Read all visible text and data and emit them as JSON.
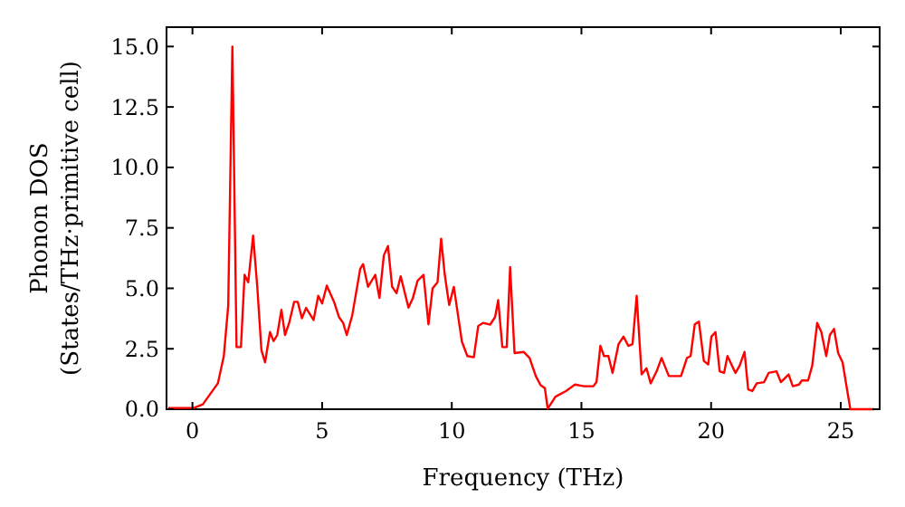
{
  "chart_data": {
    "type": "line",
    "xlabel": "Frequency (THz)",
    "ylabel": "Phonon DOS\n(States/THz·primitive cell)",
    "xlim": [
      -1,
      26.5
    ],
    "ylim": [
      0,
      15.8
    ],
    "xticks": [
      0,
      5,
      10,
      15,
      20,
      25
    ],
    "yticks": [
      {
        "value": 0,
        "label": "0.0"
      },
      2.5,
      {
        "value": 5,
        "label": "5.0"
      },
      7.5,
      {
        "value": 10,
        "label": "10.0"
      },
      12.5,
      {
        "value": 15,
        "label": "15.0"
      }
    ],
    "grid": false,
    "marker": "none",
    "line_style": "solid",
    "series": [
      {
        "color": "#ff0000",
        "x": [
          -0.93,
          0.05,
          0.4,
          0.98,
          1.21,
          1.38,
          1.54,
          1.7,
          1.87,
          2.01,
          2.15,
          2.34,
          2.5,
          2.66,
          2.8,
          2.99,
          3.13,
          3.27,
          3.43,
          3.57,
          3.73,
          3.92,
          4.06,
          4.22,
          4.38,
          4.67,
          4.85,
          5.0,
          5.18,
          5.46,
          5.65,
          5.81,
          5.95,
          6.16,
          6.47,
          6.58,
          6.77,
          7.05,
          7.21,
          7.38,
          7.54,
          7.7,
          7.87,
          8.03,
          8.33,
          8.5,
          8.68,
          8.91,
          9.1,
          9.26,
          9.45,
          9.59,
          9.73,
          9.9,
          10.08,
          10.39,
          10.6,
          10.85,
          11.02,
          11.2,
          11.48,
          11.67,
          11.79,
          11.95,
          12.12,
          12.25,
          12.42,
          12.77,
          13.0,
          13.24,
          13.42,
          13.59,
          13.7,
          14.0,
          14.4,
          14.75,
          15.1,
          15.46,
          15.58,
          15.73,
          15.87,
          16.04,
          16.2,
          16.43,
          16.62,
          16.81,
          16.97,
          17.13,
          17.32,
          17.51,
          17.67,
          17.9,
          18.09,
          18.37,
          18.84,
          19.07,
          19.21,
          19.37,
          19.53,
          19.72,
          19.89,
          20.01,
          20.17,
          20.33,
          20.5,
          20.63,
          20.94,
          21.1,
          21.29,
          21.43,
          21.59,
          21.76,
          22.04,
          22.22,
          22.52,
          22.69,
          22.99,
          23.15,
          23.39,
          23.5,
          23.74,
          23.9,
          24.09,
          24.25,
          24.44,
          24.58,
          24.74,
          24.9,
          25.07,
          25.26,
          25.37,
          26.3
        ],
        "values": [
          0.05,
          0.05,
          0.2,
          1.07,
          2.2,
          4.3,
          15.0,
          2.57,
          2.57,
          5.56,
          5.25,
          7.18,
          5.06,
          2.44,
          1.94,
          3.19,
          2.82,
          3.07,
          4.11,
          3.07,
          3.57,
          4.44,
          4.44,
          3.76,
          4.19,
          3.69,
          4.69,
          4.37,
          5.11,
          4.44,
          3.81,
          3.57,
          3.07,
          3.87,
          5.81,
          6.0,
          5.06,
          5.56,
          4.6,
          6.36,
          6.75,
          5.06,
          4.8,
          5.5,
          4.2,
          4.6,
          5.31,
          5.56,
          3.51,
          5.0,
          5.25,
          7.05,
          5.56,
          4.31,
          5.06,
          2.8,
          2.2,
          2.15,
          3.44,
          3.57,
          3.5,
          3.81,
          4.51,
          2.57,
          2.57,
          5.88,
          2.32,
          2.37,
          2.12,
          1.37,
          1.0,
          0.87,
          0.02,
          0.52,
          0.75,
          1.02,
          0.95,
          0.95,
          1.12,
          2.62,
          2.2,
          2.2,
          1.5,
          2.69,
          3.0,
          2.62,
          2.69,
          4.69,
          1.44,
          1.69,
          1.07,
          1.57,
          2.12,
          1.37,
          1.37,
          2.12,
          2.2,
          3.51,
          3.62,
          2.0,
          1.85,
          3.0,
          3.19,
          1.57,
          1.5,
          2.2,
          1.5,
          1.8,
          2.37,
          0.82,
          0.75,
          1.07,
          1.12,
          1.5,
          1.57,
          1.12,
          1.44,
          0.95,
          1.02,
          1.19,
          1.19,
          1.8,
          3.57,
          3.19,
          2.2,
          3.07,
          3.32,
          2.32,
          1.94,
          0.7,
          0,
          0
        ]
      }
    ]
  }
}
